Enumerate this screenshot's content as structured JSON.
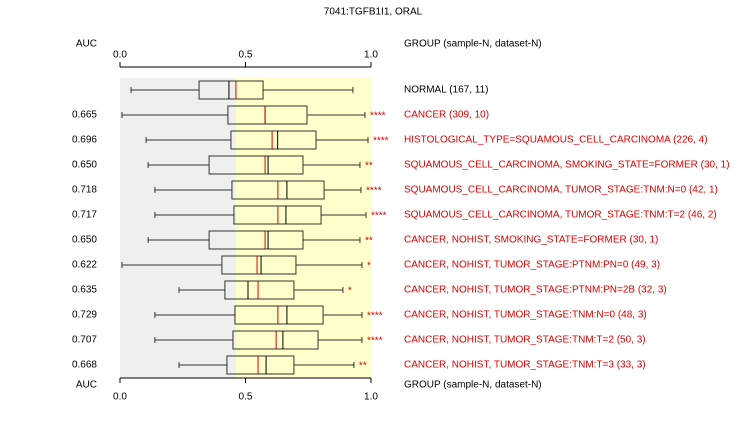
{
  "chart_data": {
    "type": "boxplot",
    "title": "7041:TGFB1I1, ORAL",
    "auc_header": "AUC",
    "group_header": "GROUP (sample-N, dataset-N)",
    "xlim": [
      0,
      1
    ],
    "xticks": [
      {
        "value": 0,
        "label": "0.0"
      },
      {
        "value": 0.5,
        "label": "0.5"
      },
      {
        "value": 1,
        "label": "1.0"
      }
    ],
    "shading_colors": [
      "#efefef",
      "#ffffcc"
    ],
    "box_color": "#333333",
    "median_color": "#000000",
    "mean_color": "#dd0000",
    "groups": [
      {
        "label": "NORMAL (167, 11)",
        "color": "#000000",
        "whisker_low": 0.044,
        "q1": 0.315,
        "median": 0.434,
        "mean": 0.462,
        "q3": 0.57,
        "whisker_high": 0.928
      },
      {
        "label": "CANCER (309, 10)",
        "auc": "0.665",
        "stars": "****",
        "color": "#dd0000",
        "whisker_low": 0.008,
        "q1": 0.43,
        "median": 0.578,
        "mean": 0.578,
        "q3": 0.745,
        "whisker_high": 0.976
      },
      {
        "label": "HISTOLOGICAL_TYPE=SQUAMOUS_CELL_CARCINOMA (226, 4)",
        "auc": "0.696",
        "stars": "****",
        "color": "#dd0000",
        "whisker_low": 0.104,
        "q1": 0.442,
        "median": 0.628,
        "mean": 0.606,
        "q3": 0.781,
        "whisker_high": 0.988
      },
      {
        "label": "SQUAMOUS_CELL_CARCINOMA, SMOKING_STATE=FORMER (30, 1)",
        "auc": "0.650",
        "stars": "**",
        "color": "#dd0000",
        "whisker_low": 0.112,
        "q1": 0.355,
        "median": 0.59,
        "mean": 0.578,
        "q3": 0.729,
        "whisker_high": 0.956
      },
      {
        "label": "SQUAMOUS_CELL_CARCINOMA, TUMOR_STAGE:TNM:N=0 (42, 1)",
        "auc": "0.718",
        "stars": "****",
        "color": "#dd0000",
        "whisker_low": 0.139,
        "q1": 0.446,
        "median": 0.665,
        "mean": 0.629,
        "q3": 0.813,
        "whisker_high": 0.96
      },
      {
        "label": "SQUAMOUS_CELL_CARCINOMA, TUMOR_STAGE:TNM:T=2 (46, 2)",
        "auc": "0.717",
        "stars": "****",
        "color": "#dd0000",
        "whisker_low": 0.139,
        "q1": 0.454,
        "median": 0.661,
        "mean": 0.629,
        "q3": 0.801,
        "whisker_high": 0.98
      },
      {
        "label": "CANCER, NOHIST, SMOKING_STATE=FORMER (30, 1)",
        "auc": "0.650",
        "stars": "**",
        "color": "#dd0000",
        "whisker_low": 0.112,
        "q1": 0.355,
        "median": 0.59,
        "mean": 0.578,
        "q3": 0.729,
        "whisker_high": 0.956
      },
      {
        "label": "CANCER, NOHIST, TUMOR_STAGE:PTNM:PN=0 (49, 3)",
        "auc": "0.622",
        "stars": "*",
        "color": "#dd0000",
        "whisker_low": 0.008,
        "q1": 0.406,
        "median": 0.562,
        "mean": 0.546,
        "q3": 0.701,
        "whisker_high": 0.964
      },
      {
        "label": "CANCER, NOHIST, TUMOR_STAGE:PTNM:PN=2B (32, 3)",
        "auc": "0.635",
        "stars": "*",
        "color": "#dd0000",
        "whisker_low": 0.235,
        "q1": 0.418,
        "median": 0.51,
        "mean": 0.55,
        "q3": 0.693,
        "whisker_high": 0.888
      },
      {
        "label": "CANCER, NOHIST, TUMOR_STAGE:TNM:N=0 (48, 3)",
        "auc": "0.729",
        "stars": "****",
        "color": "#dd0000",
        "whisker_low": 0.139,
        "q1": 0.458,
        "median": 0.665,
        "mean": 0.629,
        "q3": 0.809,
        "whisker_high": 0.964
      },
      {
        "label": "CANCER, NOHIST, TUMOR_STAGE:TNM:T=2 (50, 3)",
        "auc": "0.707",
        "stars": "****",
        "color": "#dd0000",
        "whisker_low": 0.139,
        "q1": 0.45,
        "median": 0.649,
        "mean": 0.622,
        "q3": 0.789,
        "whisker_high": 0.964
      },
      {
        "label": "CANCER, NOHIST, TUMOR_STAGE:TNM:T=3 (33, 3)",
        "auc": "0.668",
        "stars": "**",
        "color": "#dd0000",
        "whisker_low": 0.235,
        "q1": 0.426,
        "median": 0.582,
        "mean": 0.55,
        "q3": 0.693,
        "whisker_high": 0.932
      }
    ]
  }
}
